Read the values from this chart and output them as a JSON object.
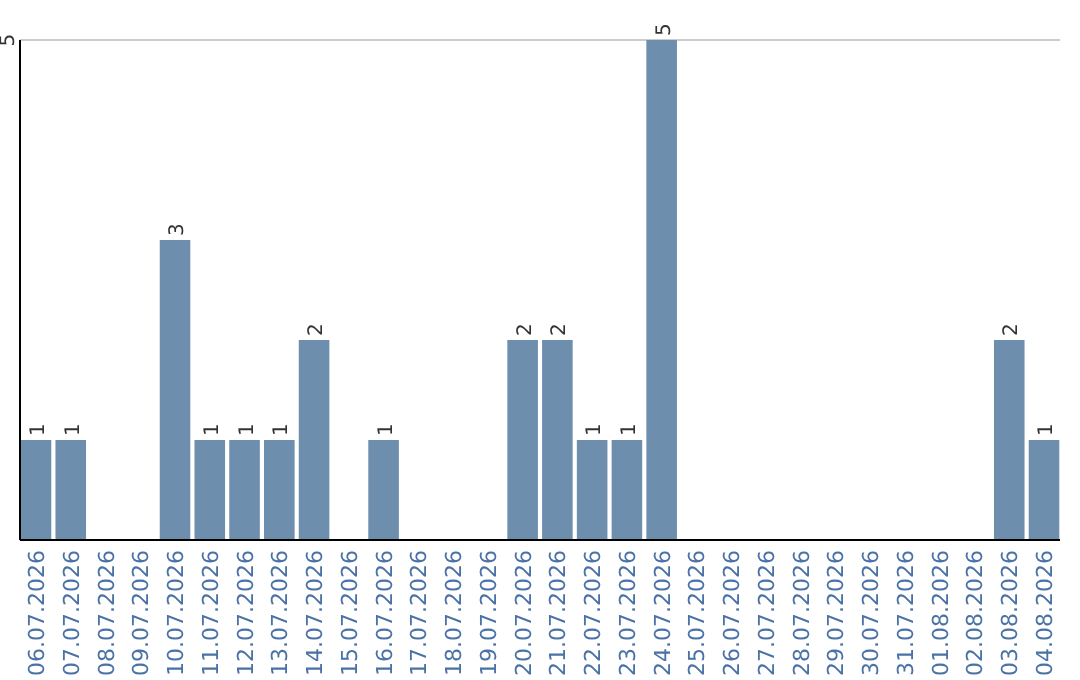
{
  "chart_data": {
    "type": "bar",
    "categories": [
      "06.07.2026",
      "07.07.2026",
      "08.07.2026",
      "09.07.2026",
      "10.07.2026",
      "11.07.2026",
      "12.07.2026",
      "13.07.2026",
      "14.07.2026",
      "15.07.2026",
      "16.07.2026",
      "17.07.2026",
      "18.07.2026",
      "19.07.2026",
      "20.07.2026",
      "21.07.2026",
      "22.07.2026",
      "23.07.2026",
      "24.07.2026",
      "25.07.2026",
      "26.07.2026",
      "27.07.2026",
      "28.07.2026",
      "29.07.2026",
      "30.07.2026",
      "31.07.2026",
      "01.08.2026",
      "02.08.2026",
      "03.08.2026",
      "04.08.2026"
    ],
    "values": [
      1,
      1,
      0,
      0,
      3,
      1,
      1,
      1,
      2,
      0,
      1,
      0,
      0,
      0,
      2,
      2,
      1,
      1,
      5,
      0,
      0,
      0,
      0,
      0,
      0,
      0,
      0,
      0,
      2,
      1
    ],
    "value_labels": [
      "1",
      "1",
      null,
      null,
      "3",
      "1",
      "1",
      "1",
      "2",
      null,
      "1",
      null,
      null,
      null,
      "2",
      "2",
      "1",
      "1",
      "5",
      null,
      null,
      null,
      null,
      null,
      null,
      null,
      null,
      null,
      "2",
      "1"
    ],
    "color": "#6e8eae",
    "ylim": [
      0,
      5
    ],
    "yticks": [
      5
    ],
    "ref_lines": [
      {
        "axis": "y",
        "value": 5,
        "color": "#cccccc"
      }
    ]
  }
}
